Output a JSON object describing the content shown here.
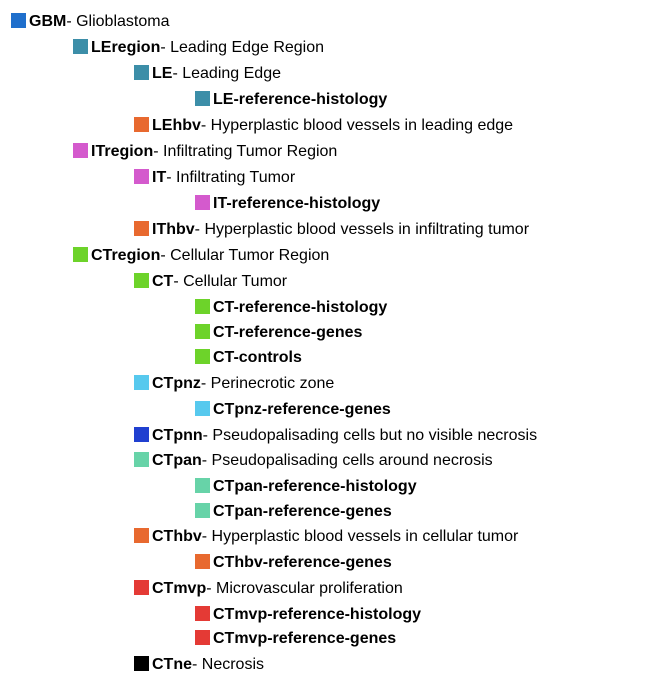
{
  "colors": {
    "GBM": "#1f6fcc",
    "LE": "#3c8ea8",
    "IT": "#d45acd",
    "CT": "#6dd32a",
    "hbv": "#e8692f",
    "CTpnz": "#57c9ee",
    "CTpnn": "#2040d0",
    "CTpan": "#67d3a8",
    "CTmvp": "#e43a35",
    "CTne": "#000000"
  },
  "separator": " - ",
  "nodes": [
    {
      "code": "GBM",
      "desc": "Glioblastoma",
      "color": "#1f6fcc"
    },
    {
      "code": "LEregion",
      "desc": "Leading Edge Region",
      "color": "#3c8ea8"
    },
    {
      "code": "LE",
      "desc": "Leading Edge",
      "color": "#3c8ea8"
    },
    {
      "code": "LE-reference-histology",
      "desc": "",
      "color": "#3c8ea8"
    },
    {
      "code": "LEhbv",
      "desc": "Hyperplastic blood vessels in leading edge",
      "color": "#e8692f"
    },
    {
      "code": "ITregion",
      "desc": "Infiltrating Tumor Region",
      "color": "#d45acd"
    },
    {
      "code": "IT",
      "desc": "Infiltrating Tumor",
      "color": "#d45acd"
    },
    {
      "code": "IT-reference-histology",
      "desc": "",
      "color": "#d45acd"
    },
    {
      "code": "IThbv",
      "desc": "Hyperplastic blood vessels in infiltrating tumor",
      "color": "#e8692f"
    },
    {
      "code": "CTregion",
      "desc": "Cellular Tumor Region",
      "color": "#6dd32a"
    },
    {
      "code": "CT",
      "desc": "Cellular Tumor",
      "color": "#6dd32a"
    },
    {
      "code": "CT-reference-histology",
      "desc": "",
      "color": "#6dd32a"
    },
    {
      "code": "CT-reference-genes",
      "desc": "",
      "color": "#6dd32a"
    },
    {
      "code": "CT-controls",
      "desc": "",
      "color": "#6dd32a"
    },
    {
      "code": "CTpnz",
      "desc": "Perinecrotic zone",
      "color": "#57c9ee"
    },
    {
      "code": "CTpnz-reference-genes",
      "desc": "",
      "color": "#57c9ee"
    },
    {
      "code": "CTpnn",
      "desc": "Pseudopalisading cells but no visible necrosis",
      "color": "#2040d0"
    },
    {
      "code": "CTpan",
      "desc": "Pseudopalisading cells around necrosis",
      "color": "#67d3a8"
    },
    {
      "code": "CTpan-reference-histology",
      "desc": "",
      "color": "#67d3a8"
    },
    {
      "code": "CTpan-reference-genes",
      "desc": "",
      "color": "#67d3a8"
    },
    {
      "code": "CThbv",
      "desc": "Hyperplastic blood vessels in cellular tumor",
      "color": "#e8692f"
    },
    {
      "code": "CThbv-reference-genes",
      "desc": "",
      "color": "#e8692f"
    },
    {
      "code": "CTmvp",
      "desc": "Microvascular proliferation",
      "color": "#e43a35"
    },
    {
      "code": "CTmvp-reference-histology",
      "desc": "",
      "color": "#e43a35"
    },
    {
      "code": "CTmvp-reference-genes",
      "desc": "",
      "color": "#e43a35"
    },
    {
      "code": "CTne",
      "desc": "Necrosis",
      "color": "#000000"
    }
  ]
}
